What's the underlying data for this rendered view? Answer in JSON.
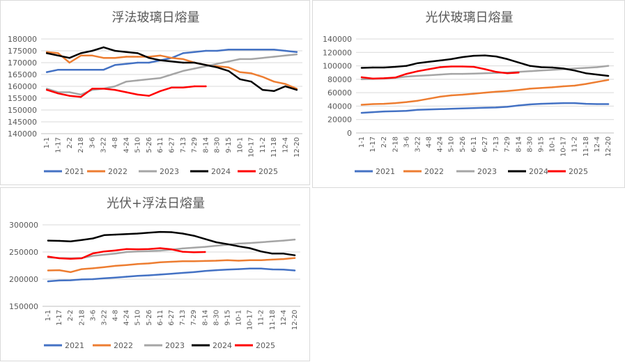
{
  "colors": {
    "2021": "#4472C4",
    "2022": "#ED7D31",
    "2023": "#A5A5A5",
    "2024": "#000000",
    "2025": "#FF0000",
    "grid": "#D9D9D9",
    "axis": "#BFBFBF"
  },
  "chart_data": [
    {
      "type": "line",
      "title": "浮法玻璃日熔量",
      "x_ticks": [
        "1-1",
        "1-17",
        "2-2",
        "2-18",
        "3-6",
        "3-22",
        "4-8",
        "4-24",
        "5-10",
        "5-26",
        "6-11",
        "6-27",
        "7-13",
        "7-29",
        "8-14",
        "8-30",
        "9-15",
        "10-1",
        "10-17",
        "11-2",
        "11-18",
        "12-4",
        "12-20"
      ],
      "ylim": [
        140000,
        180000
      ],
      "y_ticks": [
        "140000",
        "145000",
        "150000",
        "155000",
        "160000",
        "165000",
        "170000",
        "175000",
        "180000"
      ],
      "legend": [
        "2021",
        "2022",
        "2023",
        "2024",
        "2025"
      ],
      "series": [
        {
          "name": "2021",
          "values": [
            166000,
            167000,
            167000,
            167000,
            167000,
            167000,
            169000,
            169500,
            170000,
            170000,
            171000,
            172000,
            174000,
            174500,
            175000,
            175000,
            175500,
            175500,
            175500,
            175500,
            175500,
            175000,
            174500
          ]
        },
        {
          "name": "2022",
          "values": [
            174500,
            174000,
            170000,
            173000,
            173000,
            172000,
            172000,
            172500,
            172500,
            172500,
            173000,
            172000,
            171500,
            170000,
            169000,
            168500,
            168000,
            166000,
            165500,
            164000,
            162000,
            161000,
            159000
          ]
        },
        {
          "name": "2023",
          "values": [
            159000,
            157500,
            157500,
            156500,
            158500,
            159000,
            160000,
            162000,
            162500,
            163000,
            163500,
            165000,
            166500,
            167500,
            168500,
            169500,
            170500,
            171500,
            171500,
            172000,
            172500,
            173000,
            173500
          ]
        },
        {
          "name": "2024",
          "values": [
            174000,
            173000,
            172000,
            174000,
            175000,
            176500,
            175000,
            174500,
            174000,
            172000,
            171000,
            170500,
            170000,
            170000,
            169000,
            168000,
            166500,
            163000,
            162000,
            158500,
            158000,
            160000,
            158500
          ]
        },
        {
          "name": "2025",
          "values": [
            158500,
            157000,
            156000,
            155500,
            159000,
            159000,
            158500,
            157500,
            156500,
            156000,
            158000,
            159500,
            159500,
            160000,
            160000,
            null,
            null,
            null,
            null,
            null,
            null,
            null,
            null
          ]
        }
      ]
    },
    {
      "type": "line",
      "title": "光伏玻璃日熔量",
      "x_ticks": [
        "1-1",
        "1-17",
        "2-2",
        "2-18",
        "3-6",
        "3-22",
        "4-8",
        "4-24",
        "5-10",
        "5-26",
        "6-11",
        "6-27",
        "7-13",
        "7-29",
        "8-14",
        "8-30",
        "9-15",
        "10-1",
        "10-17",
        "11-2",
        "11-18",
        "12-4",
        "12-20"
      ],
      "ylim": [
        0,
        140000
      ],
      "y_ticks": [
        "0",
        "20000",
        "40000",
        "60000",
        "80000",
        "100000",
        "120000",
        "140000"
      ],
      "legend": [
        "2021",
        "2022",
        "2023",
        "2024",
        "2025"
      ],
      "series": [
        {
          "name": "2021",
          "values": [
            30000,
            31000,
            32000,
            32500,
            33000,
            34500,
            35000,
            35500,
            36000,
            36500,
            37000,
            37500,
            38000,
            39000,
            41000,
            42500,
            43500,
            44000,
            44500,
            44500,
            43500,
            43000,
            43000
          ]
        },
        {
          "name": "2022",
          "values": [
            42000,
            43000,
            43500,
            44500,
            46000,
            48000,
            51000,
            54000,
            56000,
            57000,
            58500,
            60000,
            61500,
            62500,
            64000,
            66000,
            67000,
            68000,
            69500,
            70500,
            73000,
            76000,
            79000
          ]
        },
        {
          "name": "2023",
          "values": [
            80000,
            80500,
            81000,
            82000,
            84000,
            85000,
            86000,
            87000,
            88000,
            88000,
            88500,
            89000,
            89500,
            90000,
            91000,
            92000,
            93000,
            94000,
            95000,
            96000,
            97000,
            98000,
            100000
          ]
        },
        {
          "name": "2024",
          "values": [
            97000,
            97500,
            97500,
            98500,
            100000,
            104000,
            106000,
            108000,
            110000,
            113000,
            115000,
            115500,
            114000,
            110000,
            105000,
            100000,
            98000,
            97500,
            96000,
            93000,
            89000,
            87000,
            85000
          ]
        },
        {
          "name": "2025",
          "values": [
            83000,
            81000,
            81500,
            82500,
            88000,
            92000,
            95000,
            98000,
            99000,
            99000,
            98500,
            95000,
            91000,
            89000,
            90000,
            null,
            null,
            null,
            null,
            null,
            null,
            null,
            null
          ]
        }
      ]
    },
    {
      "type": "line",
      "title": "光伏+浮法日熔量",
      "x_ticks": [
        "1-1",
        "1-17",
        "2-2",
        "2-18",
        "3-6",
        "3-22",
        "4-8",
        "4-24",
        "5-10",
        "5-26",
        "6-11",
        "6-27",
        "7-13",
        "7-29",
        "8-14",
        "8-30",
        "9-15",
        "10-1",
        "10-17",
        "11-2",
        "11-18",
        "12-4",
        "12-20"
      ],
      "ylim": [
        150000,
        300000
      ],
      "y_ticks": [
        "150000",
        "200000",
        "250000",
        "300000"
      ],
      "legend": [
        "2021",
        "2022",
        "2023",
        "2024",
        "2025"
      ],
      "series": [
        {
          "name": "2021",
          "values": [
            196000,
            197500,
            198000,
            199500,
            200000,
            201500,
            203000,
            204500,
            206000,
            207000,
            208500,
            210000,
            211500,
            213000,
            215000,
            216500,
            217500,
            218500,
            219500,
            219500,
            218000,
            217500,
            216000
          ]
        },
        {
          "name": "2022",
          "values": [
            216000,
            216500,
            213000,
            218500,
            220000,
            222000,
            224500,
            226000,
            228000,
            229000,
            231000,
            232000,
            233000,
            233000,
            233500,
            234000,
            235000,
            234000,
            235000,
            235000,
            236000,
            237000,
            239000
          ]
        },
        {
          "name": "2023",
          "values": [
            240000,
            239000,
            238500,
            239000,
            243000,
            245000,
            247000,
            250000,
            251000,
            251500,
            252500,
            254500,
            256500,
            258000,
            259500,
            261500,
            263500,
            265500,
            266500,
            268000,
            269500,
            271000,
            273000
          ]
        },
        {
          "name": "2024",
          "values": [
            271000,
            270500,
            269500,
            272000,
            275000,
            281000,
            282000,
            283000,
            284000,
            285500,
            287000,
            286500,
            284000,
            280000,
            274000,
            268000,
            264500,
            260500,
            257000,
            251000,
            247000,
            247000,
            244000
          ]
        },
        {
          "name": "2025",
          "values": [
            241500,
            238500,
            237500,
            238500,
            247500,
            251000,
            253000,
            255500,
            255000,
            255500,
            257000,
            255000,
            250500,
            249500,
            250000,
            null,
            null,
            null,
            null,
            null,
            null,
            null,
            null
          ]
        }
      ]
    }
  ]
}
